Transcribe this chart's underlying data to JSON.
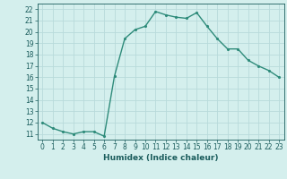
{
  "x": [
    0,
    1,
    2,
    3,
    4,
    5,
    6,
    7,
    8,
    9,
    10,
    11,
    12,
    13,
    14,
    15,
    16,
    17,
    18,
    19,
    20,
    21,
    22,
    23
  ],
  "y": [
    12.0,
    11.5,
    11.2,
    11.0,
    11.2,
    11.2,
    10.8,
    16.1,
    19.4,
    20.2,
    20.5,
    21.8,
    21.5,
    21.3,
    21.2,
    21.7,
    20.5,
    19.4,
    18.5,
    18.5,
    17.5,
    17.0,
    16.6,
    16.0
  ],
  "xlim": [
    -0.5,
    23.5
  ],
  "ylim": [
    10.5,
    22.5
  ],
  "yticks": [
    11,
    12,
    13,
    14,
    15,
    16,
    17,
    18,
    19,
    20,
    21,
    22
  ],
  "xticks": [
    0,
    1,
    2,
    3,
    4,
    5,
    6,
    7,
    8,
    9,
    10,
    11,
    12,
    13,
    14,
    15,
    16,
    17,
    18,
    19,
    20,
    21,
    22,
    23
  ],
  "xlabel": "Humidex (Indice chaleur)",
  "line_color": "#2e8b7a",
  "marker_color": "#2e8b7a",
  "bg_color": "#d4efed",
  "grid_color": "#b8dada",
  "tick_label_color": "#1a5c5c",
  "xlabel_color": "#1a5c5c",
  "line_width": 1.0,
  "marker_size": 2.5
}
